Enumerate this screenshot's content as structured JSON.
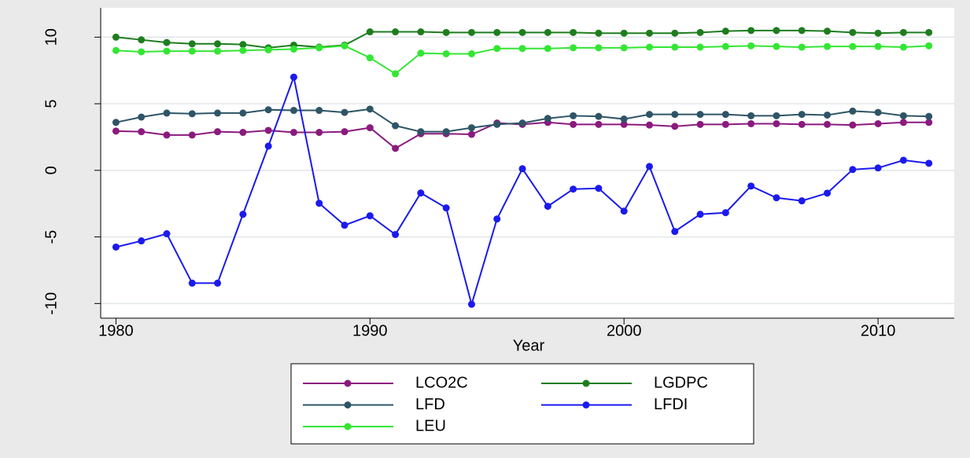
{
  "chart_data": {
    "type": "line",
    "x_label": "Year",
    "x": [
      1980,
      1981,
      1982,
      1983,
      1984,
      1985,
      1986,
      1987,
      1988,
      1989,
      1990,
      1991,
      1992,
      1993,
      1994,
      1995,
      1996,
      1997,
      1998,
      1999,
      2000,
      2001,
      2002,
      2003,
      2004,
      2005,
      2006,
      2007,
      2008,
      2009,
      2010,
      2011,
      2012
    ],
    "xlim": [
      1979.4,
      2013
    ],
    "xticks": [
      1980,
      1990,
      2000,
      2010
    ],
    "ylim": [
      -11.1,
      12.2
    ],
    "yticks": [
      -10,
      -5,
      0,
      5,
      10
    ],
    "grid": true,
    "legend_position": "bottom",
    "series": [
      {
        "name": "LCO2C",
        "color": "#8b1a7e",
        "values": [
          2.95,
          2.9,
          2.65,
          2.65,
          2.9,
          2.85,
          3.0,
          2.85,
          2.85,
          2.9,
          3.2,
          1.65,
          2.75,
          2.75,
          2.7,
          3.55,
          3.45,
          3.6,
          3.45,
          3.45,
          3.45,
          3.4,
          3.3,
          3.45,
          3.45,
          3.5,
          3.5,
          3.45,
          3.45,
          3.4,
          3.5,
          3.6,
          3.6
        ]
      },
      {
        "name": "LGDPC",
        "color": "#1e7d1e",
        "values": [
          10.0,
          9.8,
          9.6,
          9.5,
          9.5,
          9.45,
          9.2,
          9.4,
          9.25,
          9.4,
          10.4,
          10.4,
          10.4,
          10.35,
          10.35,
          10.35,
          10.35,
          10.35,
          10.35,
          10.3,
          10.3,
          10.3,
          10.3,
          10.35,
          10.45,
          10.5,
          10.5,
          10.5,
          10.45,
          10.35,
          10.3,
          10.35,
          10.35
        ]
      },
      {
        "name": "LFD",
        "color": "#2e5566",
        "values": [
          3.6,
          4.0,
          4.3,
          4.25,
          4.3,
          4.3,
          4.55,
          4.5,
          4.5,
          4.35,
          4.6,
          3.35,
          2.9,
          2.9,
          3.2,
          3.45,
          3.55,
          3.9,
          4.1,
          4.05,
          3.85,
          4.2,
          4.2,
          4.2,
          4.2,
          4.1,
          4.1,
          4.2,
          4.15,
          4.45,
          4.35,
          4.1,
          4.05
        ]
      },
      {
        "name": "LFDI",
        "color": "#1a1aee",
        "values": [
          -5.76,
          -5.3,
          -4.76,
          -8.47,
          -8.47,
          -3.3,
          1.82,
          7.0,
          -2.47,
          -4.12,
          -3.41,
          -4.82,
          -1.7,
          -2.82,
          -10.06,
          -3.65,
          0.12,
          -2.7,
          -1.41,
          -1.35,
          -3.06,
          0.29,
          -4.59,
          -3.3,
          -3.18,
          -1.18,
          -2.06,
          -2.29,
          -1.71,
          0.06,
          0.18,
          0.76,
          0.53
        ]
      },
      {
        "name": "LEU",
        "color": "#33e633",
        "values": [
          9.0,
          8.9,
          8.95,
          8.95,
          8.95,
          9.0,
          9.05,
          9.1,
          9.2,
          9.35,
          8.45,
          7.25,
          8.8,
          8.75,
          8.75,
          9.15,
          9.15,
          9.15,
          9.2,
          9.2,
          9.2,
          9.25,
          9.25,
          9.25,
          9.3,
          9.35,
          9.3,
          9.25,
          9.3,
          9.3,
          9.3,
          9.25,
          9.35
        ]
      }
    ]
  }
}
